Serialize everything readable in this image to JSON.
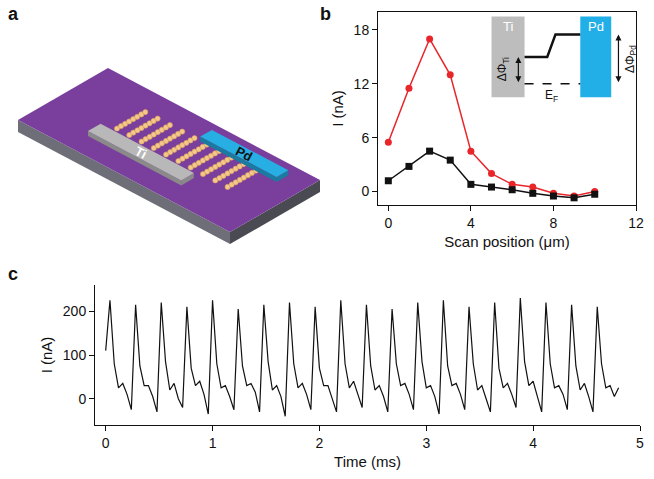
{
  "schematic": {
    "panel": "a",
    "electrodes": [
      "Ti",
      "Pd"
    ]
  },
  "chart_data": [
    {
      "type": "line",
      "panel": "b",
      "x_label": "Scan position (μm)",
      "y_label": "I (nA)",
      "x": [
        0,
        1,
        2,
        3,
        4,
        5,
        6,
        7,
        8,
        9,
        10
      ],
      "series": [
        {
          "color": "#e8262a",
          "marker": "circle",
          "line_style": "solid",
          "values": [
            5.5,
            11.5,
            17,
            13,
            4.5,
            2,
            0.8,
            0.5,
            -0.2,
            -0.5,
            0
          ]
        },
        {
          "color": "#111111",
          "marker": "square",
          "line_style": "solid",
          "values": [
            1.2,
            2.8,
            4.5,
            3.5,
            0.8,
            0.5,
            0.2,
            -0.2,
            -0.5,
            -0.7,
            -0.3
          ]
        }
      ],
      "xlim": [
        -0.5,
        12
      ],
      "xticks": [
        0,
        4,
        8,
        12
      ],
      "ylim": [
        -1.5,
        20
      ],
      "yticks": [
        0,
        6,
        12,
        18
      ],
      "grid": false,
      "inset": {
        "left": "Ti",
        "right": "Pd",
        "delta": "ΔΦ",
        "fermi": "E",
        "fermi_sub": "F"
      }
    },
    {
      "type": "line",
      "panel": "c",
      "x_label": "Time (ms)",
      "y_label": "I (nA)",
      "color": "#111111",
      "line_style": "solid",
      "x": [
        0,
        0.04,
        0.08,
        0.12,
        0.16,
        0.2,
        0.24,
        0.28,
        0.32,
        0.36,
        0.4,
        0.44,
        0.48,
        0.52,
        0.56,
        0.6,
        0.64,
        0.68,
        0.72,
        0.76,
        0.8,
        0.84,
        0.88,
        0.92,
        0.96,
        1,
        1.04,
        1.08,
        1.12,
        1.16,
        1.2,
        1.24,
        1.28,
        1.32,
        1.36,
        1.4,
        1.44,
        1.48,
        1.52,
        1.56,
        1.6,
        1.64,
        1.68,
        1.72,
        1.76,
        1.8,
        1.84,
        1.88,
        1.92,
        1.96,
        2,
        2.04,
        2.08,
        2.12,
        2.16,
        2.2,
        2.24,
        2.28,
        2.32,
        2.36,
        2.4,
        2.44,
        2.48,
        2.52,
        2.56,
        2.6,
        2.64,
        2.68,
        2.72,
        2.76,
        2.8,
        2.84,
        2.88,
        2.92,
        2.96,
        3,
        3.04,
        3.08,
        3.12,
        3.16,
        3.2,
        3.24,
        3.28,
        3.32,
        3.36,
        3.4,
        3.44,
        3.48,
        3.52,
        3.56,
        3.6,
        3.64,
        3.68,
        3.72,
        3.76,
        3.8,
        3.84,
        3.88,
        3.92,
        3.96,
        4,
        4.04,
        4.08,
        4.12,
        4.16,
        4.2,
        4.24,
        4.28,
        4.32,
        4.36,
        4.4,
        4.44,
        4.48,
        4.52,
        4.56,
        4.6,
        4.64,
        4.68,
        4.72,
        4.76,
        4.8
      ],
      "values": [
        110,
        225,
        80,
        25,
        35,
        10,
        -25,
        215,
        75,
        30,
        30,
        5,
        -30,
        220,
        85,
        20,
        35,
        0,
        -20,
        210,
        70,
        30,
        40,
        10,
        -35,
        225,
        80,
        25,
        30,
        5,
        -25,
        205,
        75,
        30,
        35,
        15,
        -30,
        215,
        85,
        20,
        30,
        5,
        -40,
        220,
        80,
        25,
        35,
        10,
        -25,
        210,
        70,
        30,
        30,
        0,
        -30,
        225,
        80,
        25,
        40,
        10,
        -20,
        215,
        75,
        20,
        30,
        5,
        -30,
        205,
        80,
        30,
        35,
        10,
        -25,
        220,
        85,
        25,
        30,
        5,
        -35,
        225,
        75,
        30,
        35,
        10,
        -25,
        210,
        80,
        20,
        30,
        0,
        -30,
        220,
        70,
        25,
        35,
        10,
        -20,
        230,
        85,
        30,
        40,
        5,
        -30,
        220,
        80,
        25,
        30,
        10,
        -25,
        215,
        75,
        20,
        35,
        5,
        -30,
        210,
        80,
        25,
        30,
        5,
        25
      ],
      "xlim": [
        -0.1,
        5
      ],
      "xticks": [
        0,
        1,
        2,
        3,
        4,
        5
      ],
      "ylim": [
        -60,
        260
      ],
      "yticks": [
        0,
        100,
        200
      ],
      "grid": false
    }
  ]
}
